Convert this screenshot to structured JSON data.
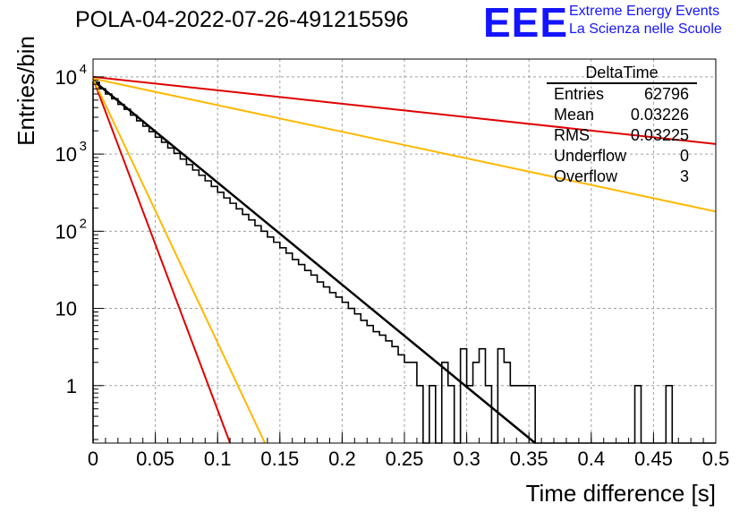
{
  "title": "POLA-04-2022-07-26-491215596",
  "logo": {
    "text": "EEE",
    "line1": "Extreme Energy Events",
    "line2": "La Scienza nelle Scuole",
    "color": "#1414ff"
  },
  "stats": {
    "name": "DeltaTime",
    "rows": [
      {
        "label": "Entries",
        "value": "62796"
      },
      {
        "label": "Mean",
        "value": "0.03226"
      },
      {
        "label": "RMS",
        "value": "0.03225"
      },
      {
        "label": "Underflow",
        "value": "0"
      },
      {
        "label": "Overflow",
        "value": "3"
      }
    ]
  },
  "chart_data": {
    "type": "line",
    "xlabel": "Time difference [s]",
    "ylabel": "Entries/bin",
    "xlim": [
      0,
      0.5
    ],
    "ylim": [
      0.18,
      17000
    ],
    "yscale": "log",
    "grid": true,
    "x_ticks": [
      "0",
      "0.05",
      "0.1",
      "0.15",
      "0.2",
      "0.25",
      "0.3",
      "0.35",
      "0.4",
      "0.45",
      "0.5"
    ],
    "y_ticks": [
      {
        "value": 1,
        "base": "1",
        "exp": ""
      },
      {
        "value": 10,
        "base": "10",
        "exp": ""
      },
      {
        "value": 100,
        "base": "10",
        "exp": "2"
      },
      {
        "value": 1000,
        "base": "10",
        "exp": "3"
      },
      {
        "value": 10000,
        "base": "10",
        "exp": "4"
      }
    ],
    "histogram": {
      "color": "#000000",
      "bin_width": 0.005,
      "bin_start": 0,
      "values": [
        8500,
        7000,
        6000,
        5200,
        4400,
        3800,
        3200,
        2700,
        2300,
        1950,
        1650,
        1420,
        1200,
        1020,
        860,
        730,
        620,
        530,
        450,
        380,
        320,
        270,
        230,
        195,
        165,
        140,
        118,
        100,
        84,
        72,
        61,
        52,
        43,
        37,
        31,
        27,
        22,
        19,
        16,
        14,
        12,
        10,
        8.5,
        7,
        6,
        5,
        4.5,
        3.8,
        3.2,
        2.5,
        2,
        2,
        1,
        0,
        1,
        0,
        2,
        1,
        0,
        3,
        1,
        2,
        3,
        1,
        0,
        3,
        2,
        1,
        1,
        1,
        1,
        0,
        0,
        0,
        0,
        0,
        0,
        0,
        0,
        0,
        0,
        0,
        0,
        0,
        0,
        0,
        0,
        1,
        0,
        0,
        0,
        0,
        1,
        0,
        0,
        0,
        0,
        0,
        0,
        0
      ]
    },
    "series": [
      {
        "color": "#000000",
        "x": [
          0,
          0.355
        ],
        "y": [
          9000,
          0.18
        ]
      },
      {
        "color": "#e00000",
        "x": [
          0,
          0.11
        ],
        "y": [
          9500,
          0.18
        ]
      },
      {
        "color": "#ffb800",
        "x": [
          0,
          0.138
        ],
        "y": [
          9500,
          0.18
        ]
      },
      {
        "color": "#ffb800",
        "x": [
          0,
          0.5
        ],
        "y": [
          9500,
          180
        ]
      },
      {
        "color": "#e00000",
        "x": [
          0,
          0.5
        ],
        "y": [
          10000,
          1350
        ]
      }
    ]
  }
}
